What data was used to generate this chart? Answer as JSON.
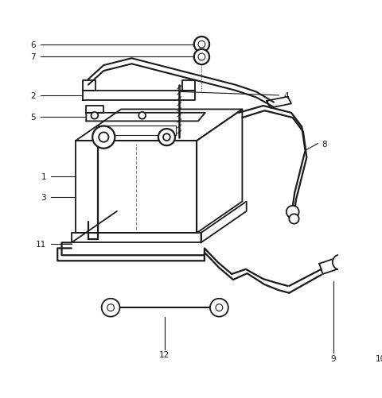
{
  "background_color": "#ffffff",
  "line_color": "#1a1a1a",
  "label_color": "#1a1a1a",
  "figsize": [
    4.8,
    5.02
  ],
  "dpi": 100,
  "lw_main": 1.3,
  "lw_thin": 0.8,
  "lw_thick": 1.8,
  "font_size": 7.5
}
